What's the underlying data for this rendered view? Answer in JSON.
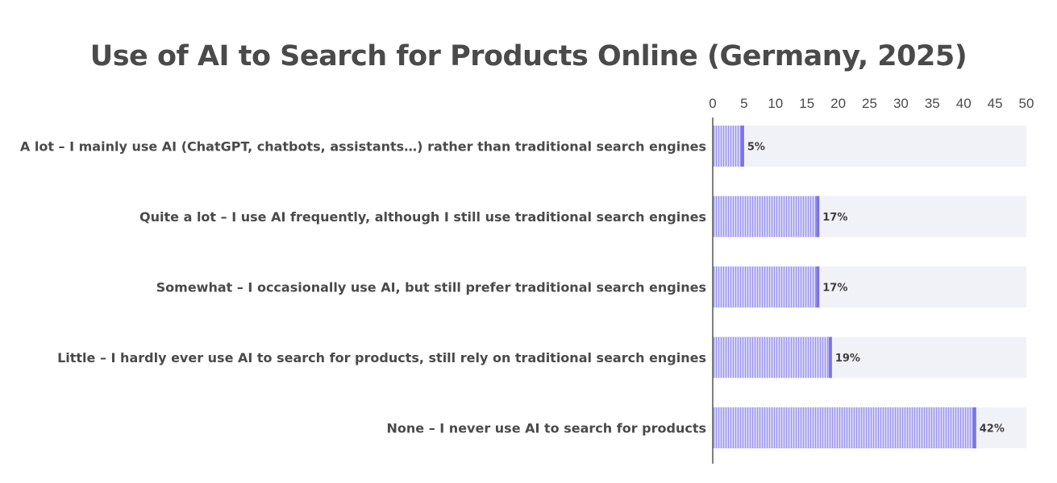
{
  "chart_data": {
    "type": "bar",
    "orientation": "horizontal",
    "title": "Use of AI to Search for Products Online (Germany, 2025)",
    "categories": [
      "A lot – I mainly use AI (ChatGPT, chatbots, assistants…) rather than traditional search engines",
      "Quite a lot – I use AI frequently, although I still use traditional search engines",
      "Somewhat – I occasionally use AI, but still prefer traditional search engines",
      "Little – I hardly ever use AI to search for products, still rely on traditional search engines",
      "None – I never use AI to search for products"
    ],
    "values": [
      5,
      17,
      17,
      19,
      42
    ],
    "value_labels": [
      "5%",
      "17%",
      "17%",
      "19%",
      "42%"
    ],
    "xlim": [
      0,
      50
    ],
    "x_ticks": [
      0,
      5,
      10,
      15,
      20,
      25,
      30,
      35,
      40,
      45,
      50
    ],
    "x_axis_position": "top",
    "grid": false,
    "colors": {
      "bar_fill": "#c9c6f5",
      "bar_stripe": "#8a83e8",
      "bar_end": "#7b73e6",
      "track": "#f1f1f8",
      "axis": "#555555",
      "text": "#4a4a4a"
    }
  }
}
